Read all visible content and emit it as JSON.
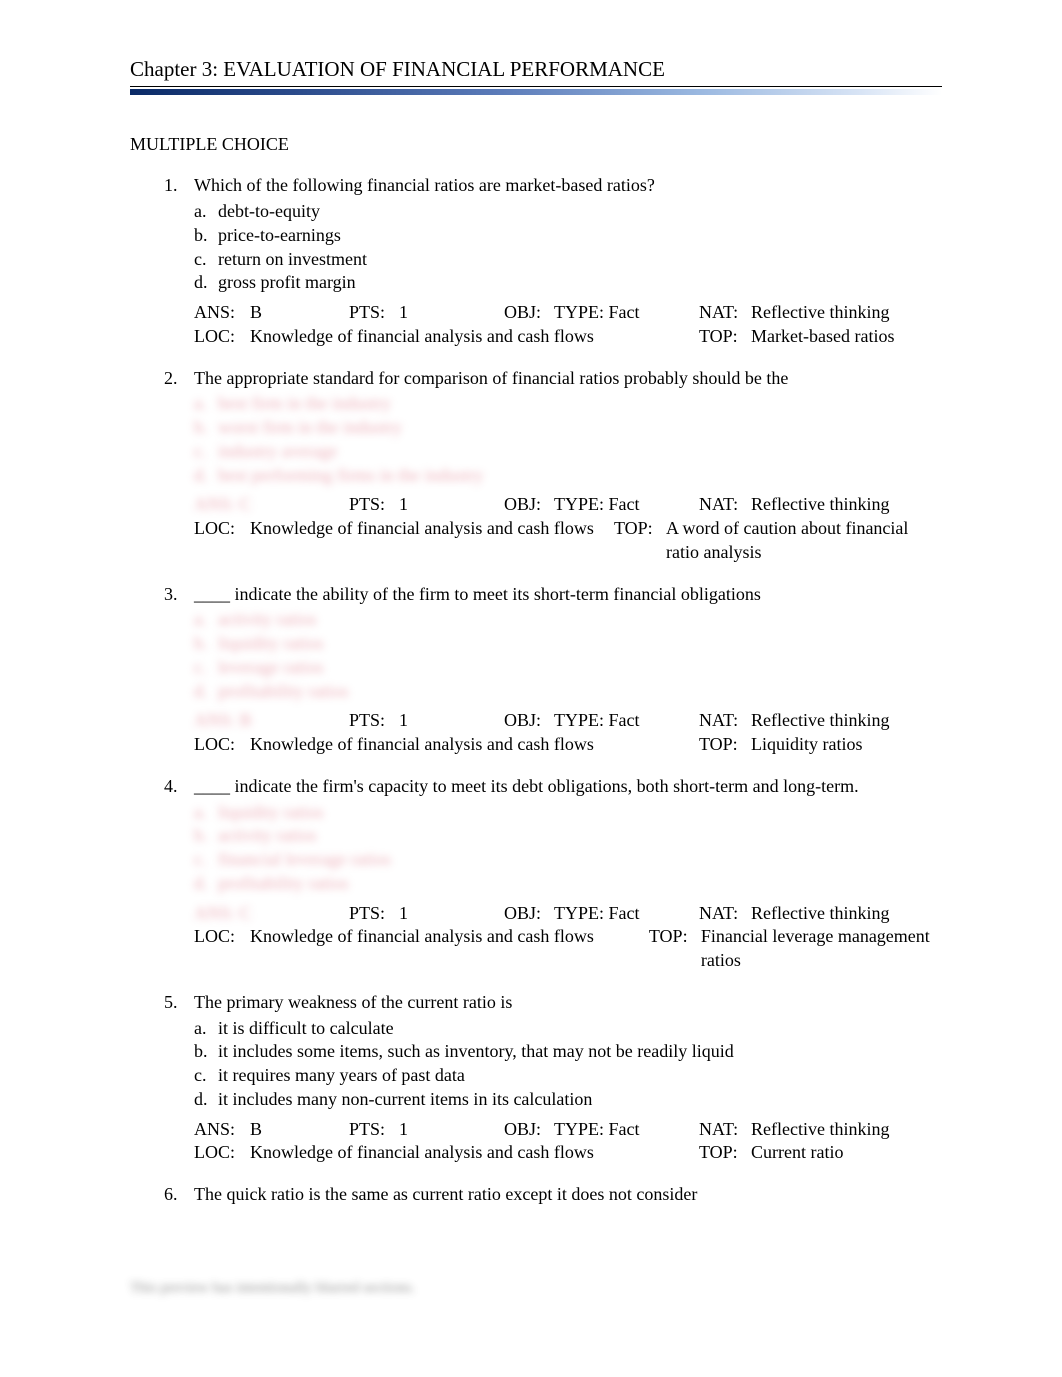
{
  "chapter_title": "Chapter 3: EVALUATION OF FINANCIAL PERFORMANCE",
  "section_heading": "MULTIPLE CHOICE",
  "questions": [
    {
      "num": "1.",
      "stem": "Which of the following financial ratios are market-based ratios?",
      "opts": [
        {
          "l": "a.",
          "t": "debt-to-equity"
        },
        {
          "l": "b.",
          "t": "price-to-earnings"
        },
        {
          "l": "c.",
          "t": "return on investment"
        },
        {
          "l": "d.",
          "t": "gross profit margin"
        }
      ],
      "ans": "B",
      "pts": "1",
      "obj": "TYPE: Fact",
      "nat": "Reflective thinking",
      "loc": "Knowledge of financial analysis and cash flows",
      "top": "Market-based ratios",
      "blurred": false
    },
    {
      "num": "2.",
      "stem": "The appropriate standard for comparison of financial ratios probably should be the",
      "opts": [
        {
          "l": "a.",
          "t": "best firm in the industry"
        },
        {
          "l": "b.",
          "t": "worst firm in the industry"
        },
        {
          "l": "c.",
          "t": "industry average"
        },
        {
          "l": "d.",
          "t": "best performing firms in the industry"
        }
      ],
      "ans": "C",
      "pts": "1",
      "obj": "TYPE: Fact",
      "nat": "Reflective thinking",
      "loc": "Knowledge of financial analysis and cash flows",
      "top": "A word of caution about financial ratio analysis",
      "blurred": true
    },
    {
      "num": "3.",
      "stem": "____ indicate the ability of the firm to meet its short-term financial obligations",
      "opts": [
        {
          "l": "a.",
          "t": "activity ratios"
        },
        {
          "l": "b.",
          "t": "liquidity ratios"
        },
        {
          "l": "c.",
          "t": "leverage ratios"
        },
        {
          "l": "d.",
          "t": "profitability ratios"
        }
      ],
      "ans": "B",
      "pts": "1",
      "obj": "TYPE: Fact",
      "nat": "Reflective thinking",
      "loc": "Knowledge of financial analysis and cash flows",
      "top": "Liquidity ratios",
      "blurred": true
    },
    {
      "num": "4.",
      "stem": "____ indicate the firm's capacity to meet its debt obligations, both short-term and long-term.",
      "opts": [
        {
          "l": "a.",
          "t": "liquidity ratios"
        },
        {
          "l": "b.",
          "t": "activity ratios"
        },
        {
          "l": "c.",
          "t": "financial leverage ratios"
        },
        {
          "l": "d.",
          "t": "profitability ratios"
        }
      ],
      "ans": "C",
      "pts": "1",
      "obj": "TYPE: Fact",
      "nat": "Reflective thinking",
      "loc": "Knowledge of financial analysis and cash flows",
      "top": "Financial leverage management ratios",
      "blurred": true
    },
    {
      "num": "5.",
      "stem": "The primary weakness of the current ratio is",
      "opts": [
        {
          "l": "a.",
          "t": "it is difficult to calculate"
        },
        {
          "l": "b.",
          "t": "it includes some items, such as inventory, that may not be readily liquid"
        },
        {
          "l": "c.",
          "t": "it requires many years of past data"
        },
        {
          "l": "d.",
          "t": "it includes many non-current items in its calculation"
        }
      ],
      "ans": "B",
      "pts": "1",
      "obj": "TYPE: Fact",
      "nat": "Reflective thinking",
      "loc": "Knowledge of financial analysis and cash flows",
      "top": "Current ratio",
      "blurred": false
    },
    {
      "num": "6.",
      "stem": "The quick ratio is the same as current ratio except it does not consider",
      "opts": [],
      "blurred": false
    }
  ],
  "labels": {
    "ans": "ANS:",
    "pts": "PTS:",
    "obj": "OBJ:",
    "nat": "NAT:",
    "loc": "LOC:",
    "top": "TOP:"
  },
  "footer_blur": "This preview has intentionally blurred sections."
}
